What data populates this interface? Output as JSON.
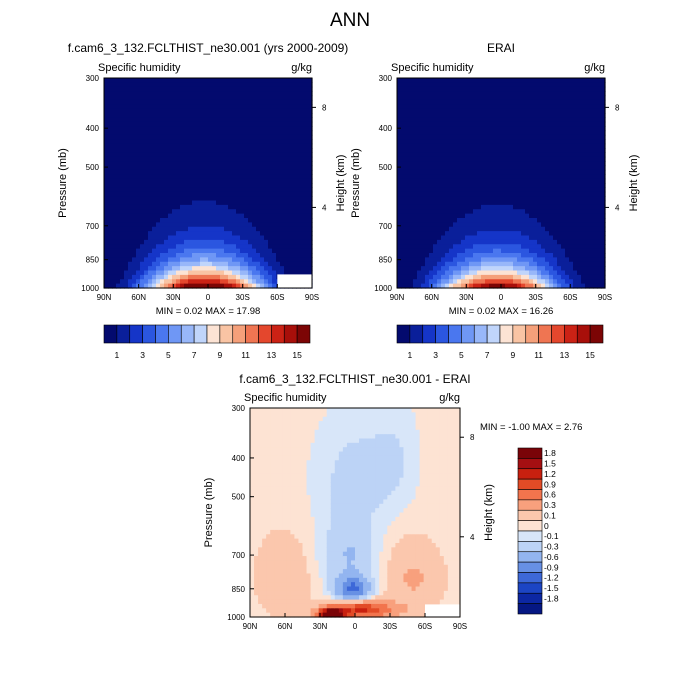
{
  "figure": {
    "title": "ANN"
  },
  "chart_data": [
    {
      "type": "heatmap",
      "panel": "model",
      "title": "f.cam6_3_132.FCLTHIST_ne30.001 (yrs 2000-2009)",
      "subtitle_left": "Specific humidity",
      "subtitle_right": "g/kg",
      "xlabel": "",
      "ylabel": "Pressure (mb)",
      "y2label": "Height (km)",
      "x_ticks": [
        "90N",
        "60N",
        "30N",
        "0",
        "30S",
        "60S",
        "90S"
      ],
      "x_tick_values": [
        90,
        60,
        30,
        0,
        -30,
        -60,
        -90
      ],
      "y_ticks": [
        "300",
        "400",
        "500",
        "700",
        "850",
        "1000"
      ],
      "y_tick_values": [
        300,
        400,
        500,
        700,
        850,
        1000
      ],
      "y2_ticks": [
        "8",
        "4"
      ],
      "y2_tick_pressure": [
        355,
        630
      ],
      "ylim": [
        300,
        1000
      ],
      "xlim": [
        90,
        -90
      ],
      "stats": "MIN =  0.02  MAX = 17.98",
      "min": 0.02,
      "max": 17.98,
      "peak_value": 17.98,
      "peak_lat": 2,
      "missing_box": {
        "lat": [
          -60,
          -90
        ],
        "p": [
          925,
          1000
        ]
      },
      "colorbar": {
        "orientation": "horizontal",
        "labels": [
          "1",
          "3",
          "5",
          "7",
          "9",
          "11",
          "13",
          "15"
        ],
        "levels": [
          1,
          2,
          3,
          4,
          5,
          6,
          7,
          8,
          9,
          10,
          11,
          12,
          13,
          14,
          15,
          16
        ],
        "colors": [
          "#030a6e",
          "#0a1f9a",
          "#1535c8",
          "#2b56e0",
          "#4a77ef",
          "#6f97f5",
          "#98b7f9",
          "#c0d5fb",
          "#fce3d4",
          "#f9c4a4",
          "#f5a07a",
          "#ef7552",
          "#e4472d",
          "#cb2215",
          "#a80f0a",
          "#7c0505"
        ]
      }
    },
    {
      "type": "heatmap",
      "panel": "obs",
      "title": "ERAI",
      "subtitle_left": "Specific humidity",
      "subtitle_right": "g/kg",
      "xlabel": "",
      "ylabel": "Pressure (mb)",
      "y2label": "Height (km)",
      "x_ticks": [
        "90N",
        "60N",
        "30N",
        "0",
        "30S",
        "60S",
        "90S"
      ],
      "x_tick_values": [
        90,
        60,
        30,
        0,
        -30,
        -60,
        -90
      ],
      "y_ticks": [
        "300",
        "400",
        "500",
        "700",
        "850",
        "1000"
      ],
      "y_tick_values": [
        300,
        400,
        500,
        700,
        850,
        1000
      ],
      "y2_ticks": [
        "8",
        "4"
      ],
      "y2_tick_pressure": [
        355,
        630
      ],
      "ylim": [
        300,
        1000
      ],
      "xlim": [
        90,
        -90
      ],
      "stats": "MIN =  0.02  MAX = 16.26",
      "min": 0.02,
      "max": 16.26,
      "peak_value": 16.26,
      "peak_lat": 2,
      "colorbar": {
        "orientation": "horizontal",
        "labels": [
          "1",
          "3",
          "5",
          "7",
          "9",
          "11",
          "13",
          "15"
        ],
        "levels": [
          1,
          2,
          3,
          4,
          5,
          6,
          7,
          8,
          9,
          10,
          11,
          12,
          13,
          14,
          15,
          16
        ],
        "colors": [
          "#030a6e",
          "#0a1f9a",
          "#1535c8",
          "#2b56e0",
          "#4a77ef",
          "#6f97f5",
          "#98b7f9",
          "#c0d5fb",
          "#fce3d4",
          "#f9c4a4",
          "#f5a07a",
          "#ef7552",
          "#e4472d",
          "#cb2215",
          "#a80f0a",
          "#7c0505"
        ]
      }
    },
    {
      "type": "heatmap",
      "panel": "difference",
      "title": "f.cam6_3_132.FCLTHIST_ne30.001 - ERAI",
      "subtitle_left": "Specific humidity",
      "subtitle_right": "g/kg",
      "xlabel": "",
      "ylabel": "Pressure (mb)",
      "y2label": "Height (km)",
      "x_ticks": [
        "90N",
        "60N",
        "30N",
        "0",
        "30S",
        "60S",
        "90S"
      ],
      "x_tick_values": [
        90,
        60,
        30,
        0,
        -30,
        -60,
        -90
      ],
      "y_ticks": [
        "300",
        "400",
        "500",
        "700",
        "850",
        "1000"
      ],
      "y_tick_values": [
        300,
        400,
        500,
        700,
        850,
        1000
      ],
      "y2_ticks": [
        "8",
        "4"
      ],
      "y2_tick_pressure": [
        355,
        630
      ],
      "ylim": [
        300,
        1000
      ],
      "xlim": [
        90,
        -90
      ],
      "stats": "MIN = -1.00  MAX =  2.76",
      "min": -1.0,
      "max": 2.76,
      "missing_box": {
        "lat": [
          -60,
          -90
        ],
        "p": [
          930,
          1000
        ]
      },
      "colorbar": {
        "orientation": "vertical",
        "labels": [
          "1.8",
          "1.5",
          "1.2",
          "0.9",
          "0.6",
          "0.3",
          "0.1",
          "0",
          "-0.1",
          "-0.3",
          "-0.6",
          "-0.9",
          "-1.2",
          "-1.5",
          "-1.8"
        ],
        "levels": [
          -1.8,
          -1.5,
          -1.2,
          -0.9,
          -0.6,
          -0.3,
          -0.1,
          0,
          0.1,
          0.3,
          0.6,
          0.9,
          1.2,
          1.5,
          1.8
        ],
        "colors": [
          "#7a0408",
          "#a50f12",
          "#c8200f",
          "#e24b26",
          "#f2744d",
          "#f8a07d",
          "#fbc7ad",
          "#fde3d3",
          "#d8e6f9",
          "#bcd3f6",
          "#93b5f0",
          "#6790e4",
          "#3d68d8",
          "#1c45c4",
          "#0c27a3",
          "#051783"
        ]
      }
    }
  ]
}
